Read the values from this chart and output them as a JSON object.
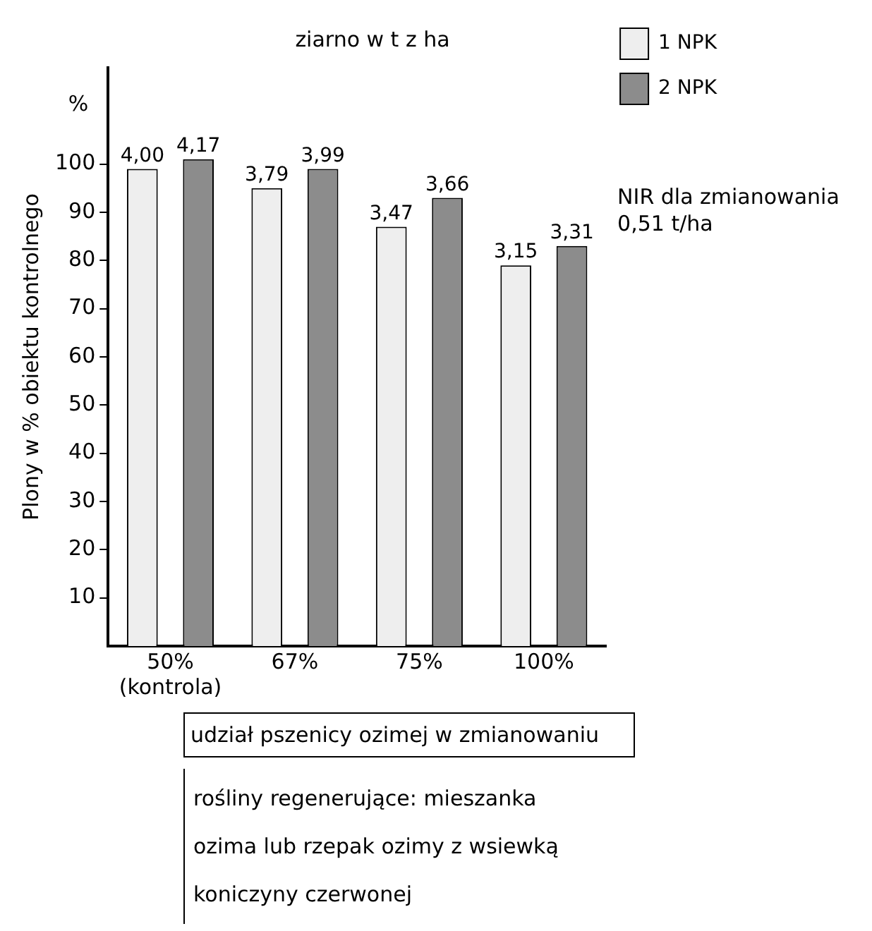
{
  "chart_data": {
    "type": "bar",
    "title": "ziarno w t z ha",
    "ylabel": "Plony w % obiektu kontrolnego",
    "xlabel": "udział pszenicy ozimej w zmianowaniu",
    "categories": [
      "50% (kontrola)",
      "67%",
      "75%",
      "100%"
    ],
    "series": [
      {
        "name": "1 NPK",
        "color": "#eeeeee",
        "values": [
          99,
          95,
          87,
          79
        ]
      },
      {
        "name": "2 NPK",
        "color": "#8c8c8c",
        "values": [
          101,
          99,
          93,
          83
        ]
      }
    ],
    "ylim": [
      0,
      120
    ],
    "yticks": [
      10,
      20,
      30,
      40,
      50,
      60,
      70,
      80,
      90,
      100
    ],
    "grid": false,
    "legend": "top right",
    "annotations": [
      "%",
      "NIR dla zmianowania 0,51 t/ha",
      "rośliny regenerujące: mieszanka ozima lub rzepak ozimy z wsiewką koniczyny czerwonej",
      "4,00",
      "4,17",
      "3,79",
      "3,99",
      "3,47",
      "3,66",
      "3,15",
      "3,31"
    ]
  }
}
